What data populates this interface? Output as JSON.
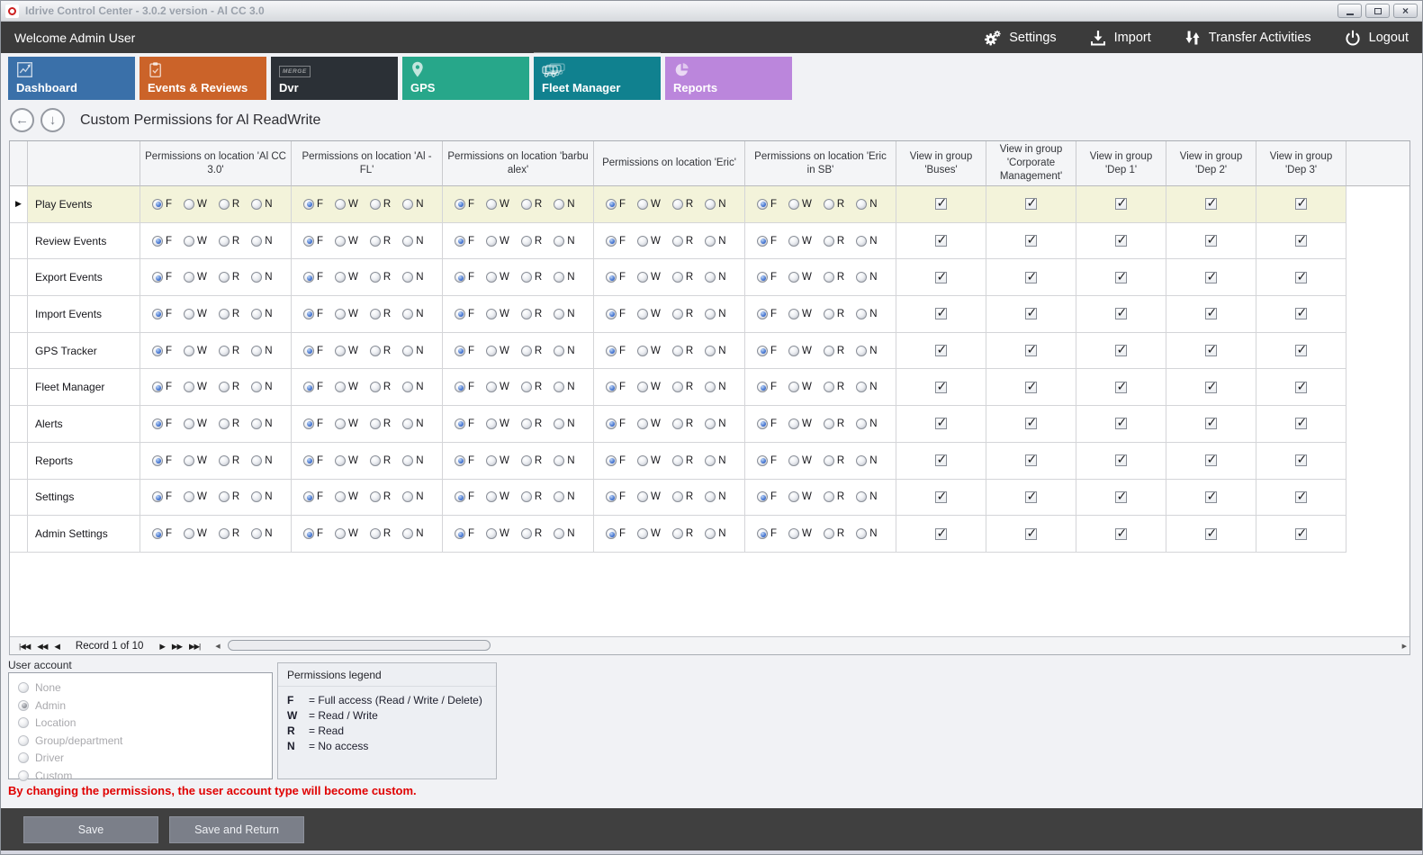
{
  "window": {
    "title": "Idrive Control Center - 3.0.2 version - Al CC 3.0"
  },
  "topbar": {
    "welcome": "Welcome Admin User",
    "menu": [
      {
        "label": "Settings",
        "icon": "gears-icon"
      },
      {
        "label": "Import",
        "icon": "import-icon"
      },
      {
        "label": "Transfer Activities",
        "icon": "transfer-arrows-icon"
      },
      {
        "label": "Logout",
        "icon": "power-icon"
      }
    ]
  },
  "tabs": [
    {
      "label": "Dashboard",
      "icon": "line-chart-icon",
      "color": "#3a70a9",
      "selected": false
    },
    {
      "label": "Events & Reviews",
      "icon": "clipboard-check-icon",
      "color": "#cb6329",
      "selected": false
    },
    {
      "label": "Dvr",
      "icon": "merge-badge-icon",
      "badge": "MERGE",
      "color": "#2b3036",
      "selected": false
    },
    {
      "label": "GPS",
      "icon": "map-pin-icon",
      "color": "#27a78a",
      "selected": false
    },
    {
      "label": "Fleet Manager",
      "icon": "fleet-vehicles-icon",
      "color": "#10818f",
      "selected": true
    },
    {
      "label": "Reports",
      "icon": "pie-chart-icon",
      "color": "#bb86dc",
      "selected": false
    }
  ],
  "page": {
    "title": "Custom Permissions for Al ReadWrite"
  },
  "grid": {
    "radio_options": [
      "F",
      "W",
      "R",
      "N"
    ],
    "location_columns": [
      "Permissions on location 'Al CC 3.0'",
      "Permissions on location 'Al - FL'",
      "Permissions on location 'barbu alex'",
      "Permissions on location 'Eric'",
      "Permissions on location 'Eric in SB'"
    ],
    "group_columns": [
      "View in group 'Buses'",
      "View in group 'Corporate Management'",
      "View in group 'Dep 1'",
      "View in group 'Dep 2'",
      "View in group 'Dep 3'"
    ],
    "rows": [
      {
        "label": "Play Events",
        "selected": true,
        "permissions": [
          "F",
          "F",
          "F",
          "F",
          "F"
        ],
        "groups": [
          true,
          true,
          true,
          true,
          true
        ]
      },
      {
        "label": "Review Events",
        "selected": false,
        "permissions": [
          "F",
          "F",
          "F",
          "F",
          "F"
        ],
        "groups": [
          true,
          true,
          true,
          true,
          true
        ]
      },
      {
        "label": "Export Events",
        "selected": false,
        "permissions": [
          "F",
          "F",
          "F",
          "F",
          "F"
        ],
        "groups": [
          true,
          true,
          true,
          true,
          true
        ]
      },
      {
        "label": "Import Events",
        "selected": false,
        "permissions": [
          "F",
          "F",
          "F",
          "F",
          "F"
        ],
        "groups": [
          true,
          true,
          true,
          true,
          true
        ]
      },
      {
        "label": "GPS Tracker",
        "selected": false,
        "permissions": [
          "F",
          "F",
          "F",
          "F",
          "F"
        ],
        "groups": [
          true,
          true,
          true,
          true,
          true
        ]
      },
      {
        "label": "Fleet Manager",
        "selected": false,
        "permissions": [
          "F",
          "F",
          "F",
          "F",
          "F"
        ],
        "groups": [
          true,
          true,
          true,
          true,
          true
        ]
      },
      {
        "label": "Alerts",
        "selected": false,
        "permissions": [
          "F",
          "F",
          "F",
          "F",
          "F"
        ],
        "groups": [
          true,
          true,
          true,
          true,
          true
        ]
      },
      {
        "label": "Reports",
        "selected": false,
        "permissions": [
          "F",
          "F",
          "F",
          "F",
          "F"
        ],
        "groups": [
          true,
          true,
          true,
          true,
          true
        ]
      },
      {
        "label": "Settings",
        "selected": false,
        "permissions": [
          "F",
          "F",
          "F",
          "F",
          "F"
        ],
        "groups": [
          true,
          true,
          true,
          true,
          true
        ]
      },
      {
        "label": "Admin Settings",
        "selected": false,
        "permissions": [
          "F",
          "F",
          "F",
          "F",
          "F"
        ],
        "groups": [
          true,
          true,
          true,
          true,
          true
        ]
      }
    ]
  },
  "navigator": {
    "record_text": "Record 1 of 10",
    "left_buttons": [
      {
        "name": "first-record-button",
        "glyph": "|◀◀"
      },
      {
        "name": "prev-page-button",
        "glyph": "◀◀"
      },
      {
        "name": "prev-record-button",
        "glyph": "◀"
      }
    ],
    "right_buttons": [
      {
        "name": "next-record-button",
        "glyph": "▶"
      },
      {
        "name": "next-page-button",
        "glyph": "▶▶"
      },
      {
        "name": "last-record-button",
        "glyph": "▶▶|"
      }
    ]
  },
  "user_account": {
    "title": "User account",
    "options": [
      {
        "label": "None",
        "checked": false
      },
      {
        "label": "Admin",
        "checked": true
      },
      {
        "label": "Location",
        "checked": false
      },
      {
        "label": "Group/department",
        "checked": false
      },
      {
        "label": "Driver",
        "checked": false
      },
      {
        "label": "Custom",
        "checked": false
      }
    ]
  },
  "legend": {
    "title": "Permissions legend",
    "items": [
      {
        "key": "F",
        "desc": "= Full access (Read / Write / Delete)"
      },
      {
        "key": "W",
        "desc": "= Read / Write"
      },
      {
        "key": "R",
        "desc": "= Read"
      },
      {
        "key": "N",
        "desc": "= No access"
      }
    ]
  },
  "warning": "By changing the permissions, the user account type will become custom.",
  "actions": {
    "save": "Save",
    "save_and_return": "Save and Return"
  },
  "colors": {
    "selected_row": "#f3f3da",
    "warning_red": "#e00000",
    "topbar_dark": "#3b3b3b"
  }
}
